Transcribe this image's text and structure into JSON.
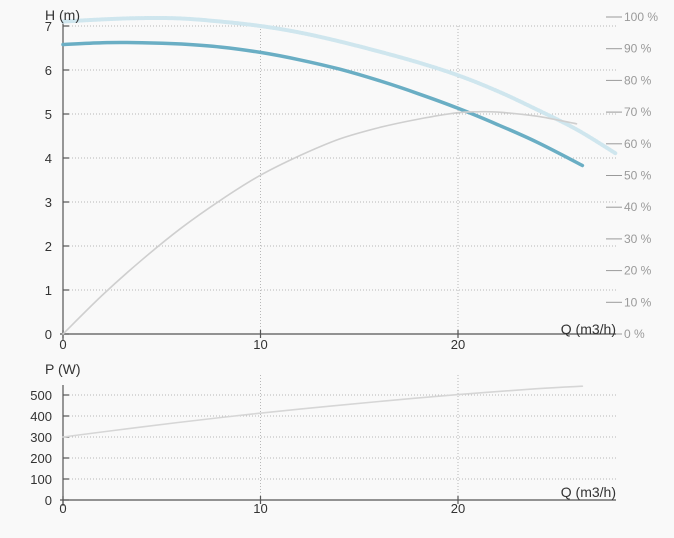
{
  "colors": {
    "head_curve": "#6aaec4",
    "head_max_curve": "#cfe6ee",
    "efficiency_curve": "#cfcfcf",
    "power_curve": "#d6d6d6",
    "axis": "#555555",
    "grid": "#b8b8b8",
    "right_axis": "#9a9a9a"
  },
  "chart_data": [
    {
      "type": "line",
      "ylabel": "H (m)",
      "xlabel": "Q (m3/h)",
      "xlim": [
        0,
        28
      ],
      "ylim": [
        0,
        7
      ],
      "x_ticks": [
        "0",
        "10",
        "20"
      ],
      "y_ticks": [
        "0",
        "1",
        "2",
        "3",
        "4",
        "5",
        "6",
        "7"
      ],
      "secondary_ylim": [
        0,
        100
      ],
      "secondary_y_ticks": [
        "0 %",
        "10 %",
        "20 %",
        "30 %",
        "40 %",
        "50 %",
        "60 %",
        "70 %",
        "80 %",
        "90 %",
        "100 %"
      ],
      "grid": true,
      "series": [
        {
          "key": "head_max",
          "axis": "left",
          "style": "dotted",
          "x": [
            0,
            2,
            4,
            6,
            8,
            10,
            12,
            14,
            16,
            18,
            20,
            22,
            24,
            26,
            28
          ],
          "y": [
            7.1,
            7.15,
            7.18,
            7.17,
            7.1,
            7.0,
            6.85,
            6.65,
            6.42,
            6.17,
            5.88,
            5.52,
            5.1,
            4.65,
            4.1
          ]
        },
        {
          "key": "head",
          "axis": "left",
          "x": [
            0,
            2,
            4,
            6,
            8,
            10,
            12,
            14,
            16,
            18,
            20,
            22,
            24,
            26.3
          ],
          "y": [
            6.58,
            6.62,
            6.62,
            6.59,
            6.52,
            6.4,
            6.23,
            6.02,
            5.76,
            5.46,
            5.13,
            4.76,
            4.36,
            3.83
          ]
        },
        {
          "key": "efficiency",
          "axis": "right",
          "x": [
            0,
            2,
            4,
            6,
            8,
            10,
            12,
            14,
            16,
            18,
            20,
            21,
            22,
            24,
            26
          ],
          "y": [
            0,
            12.3,
            23.4,
            33.5,
            42.3,
            50.1,
            56.3,
            61.5,
            65.1,
            67.8,
            69.8,
            70.1,
            70.0,
            68.7,
            66.3
          ]
        }
      ]
    },
    {
      "type": "line",
      "ylabel": "P (W)",
      "xlabel": "Q (m3/h)",
      "xlim": [
        0,
        28
      ],
      "ylim": [
        0,
        550
      ],
      "x_ticks": [
        "0",
        "10",
        "20"
      ],
      "y_ticks": [
        "0",
        "100",
        "200",
        "300",
        "400",
        "500"
      ],
      "grid": true,
      "series": [
        {
          "key": "power",
          "axis": "left",
          "x": [
            0,
            4,
            8,
            12,
            16,
            20,
            24,
            26.3
          ],
          "y": [
            300,
            348,
            393,
            433,
            469,
            502,
            530,
            542
          ]
        }
      ]
    }
  ]
}
